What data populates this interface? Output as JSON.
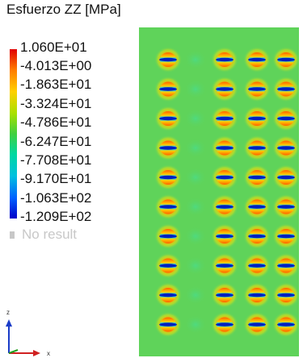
{
  "title": "Esfuerzo ZZ [MPa]",
  "legend": {
    "labels": [
      "1.060E+01",
      "-4.013E+00",
      "-1.863E+01",
      "-3.324E+01",
      "-4.786E+01",
      "-6.247E+01",
      "-7.708E+01",
      "-9.170E+01",
      "-1.063E+02",
      "-1.209E+02"
    ],
    "no_result_label": "No result"
  },
  "axes": {
    "z_label": "z",
    "x_label": "x"
  },
  "colors": {
    "field_background": "#5fd35a",
    "max_color": "#e00000",
    "min_color": "#0000c8",
    "no_result": "#c8c8c8"
  },
  "stress_pattern": {
    "columns": 4,
    "rows": 10
  }
}
